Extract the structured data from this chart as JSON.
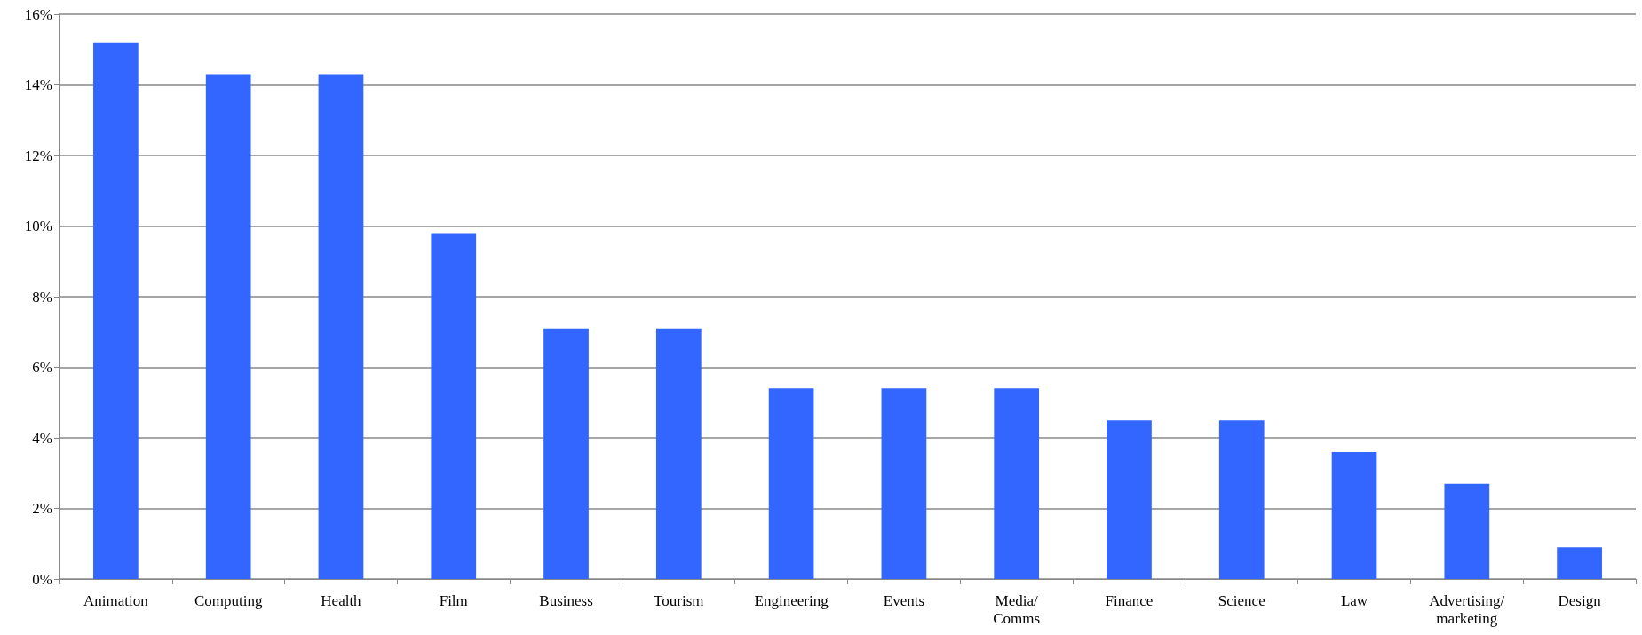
{
  "chart_data": {
    "type": "bar",
    "categories": [
      "Animation",
      "Computing",
      "Health",
      "Film",
      "Business",
      "Tourism",
      "Engineering",
      "Events",
      "Media/Comms",
      "Finance",
      "Science",
      "Law",
      "Advertising/marketing",
      "Design"
    ],
    "values": [
      15.2,
      14.3,
      14.3,
      9.8,
      7.1,
      7.1,
      5.4,
      5.4,
      5.4,
      4.5,
      4.5,
      3.6,
      2.7,
      0.9
    ],
    "color": "#3366ff",
    "ylim": [
      0,
      16
    ],
    "yticks": [
      {
        "value": 0,
        "label": "0%"
      },
      {
        "value": 2,
        "label": "2%"
      },
      {
        "value": 4,
        "label": "4%"
      },
      {
        "value": 6,
        "label": "6%"
      },
      {
        "value": 8,
        "label": "8%"
      },
      {
        "value": 10,
        "label": "10%"
      },
      {
        "value": 12,
        "label": "12%"
      },
      {
        "value": 14,
        "label": "14%"
      },
      {
        "value": 16,
        "label": "16%"
      }
    ],
    "grid": "y"
  }
}
